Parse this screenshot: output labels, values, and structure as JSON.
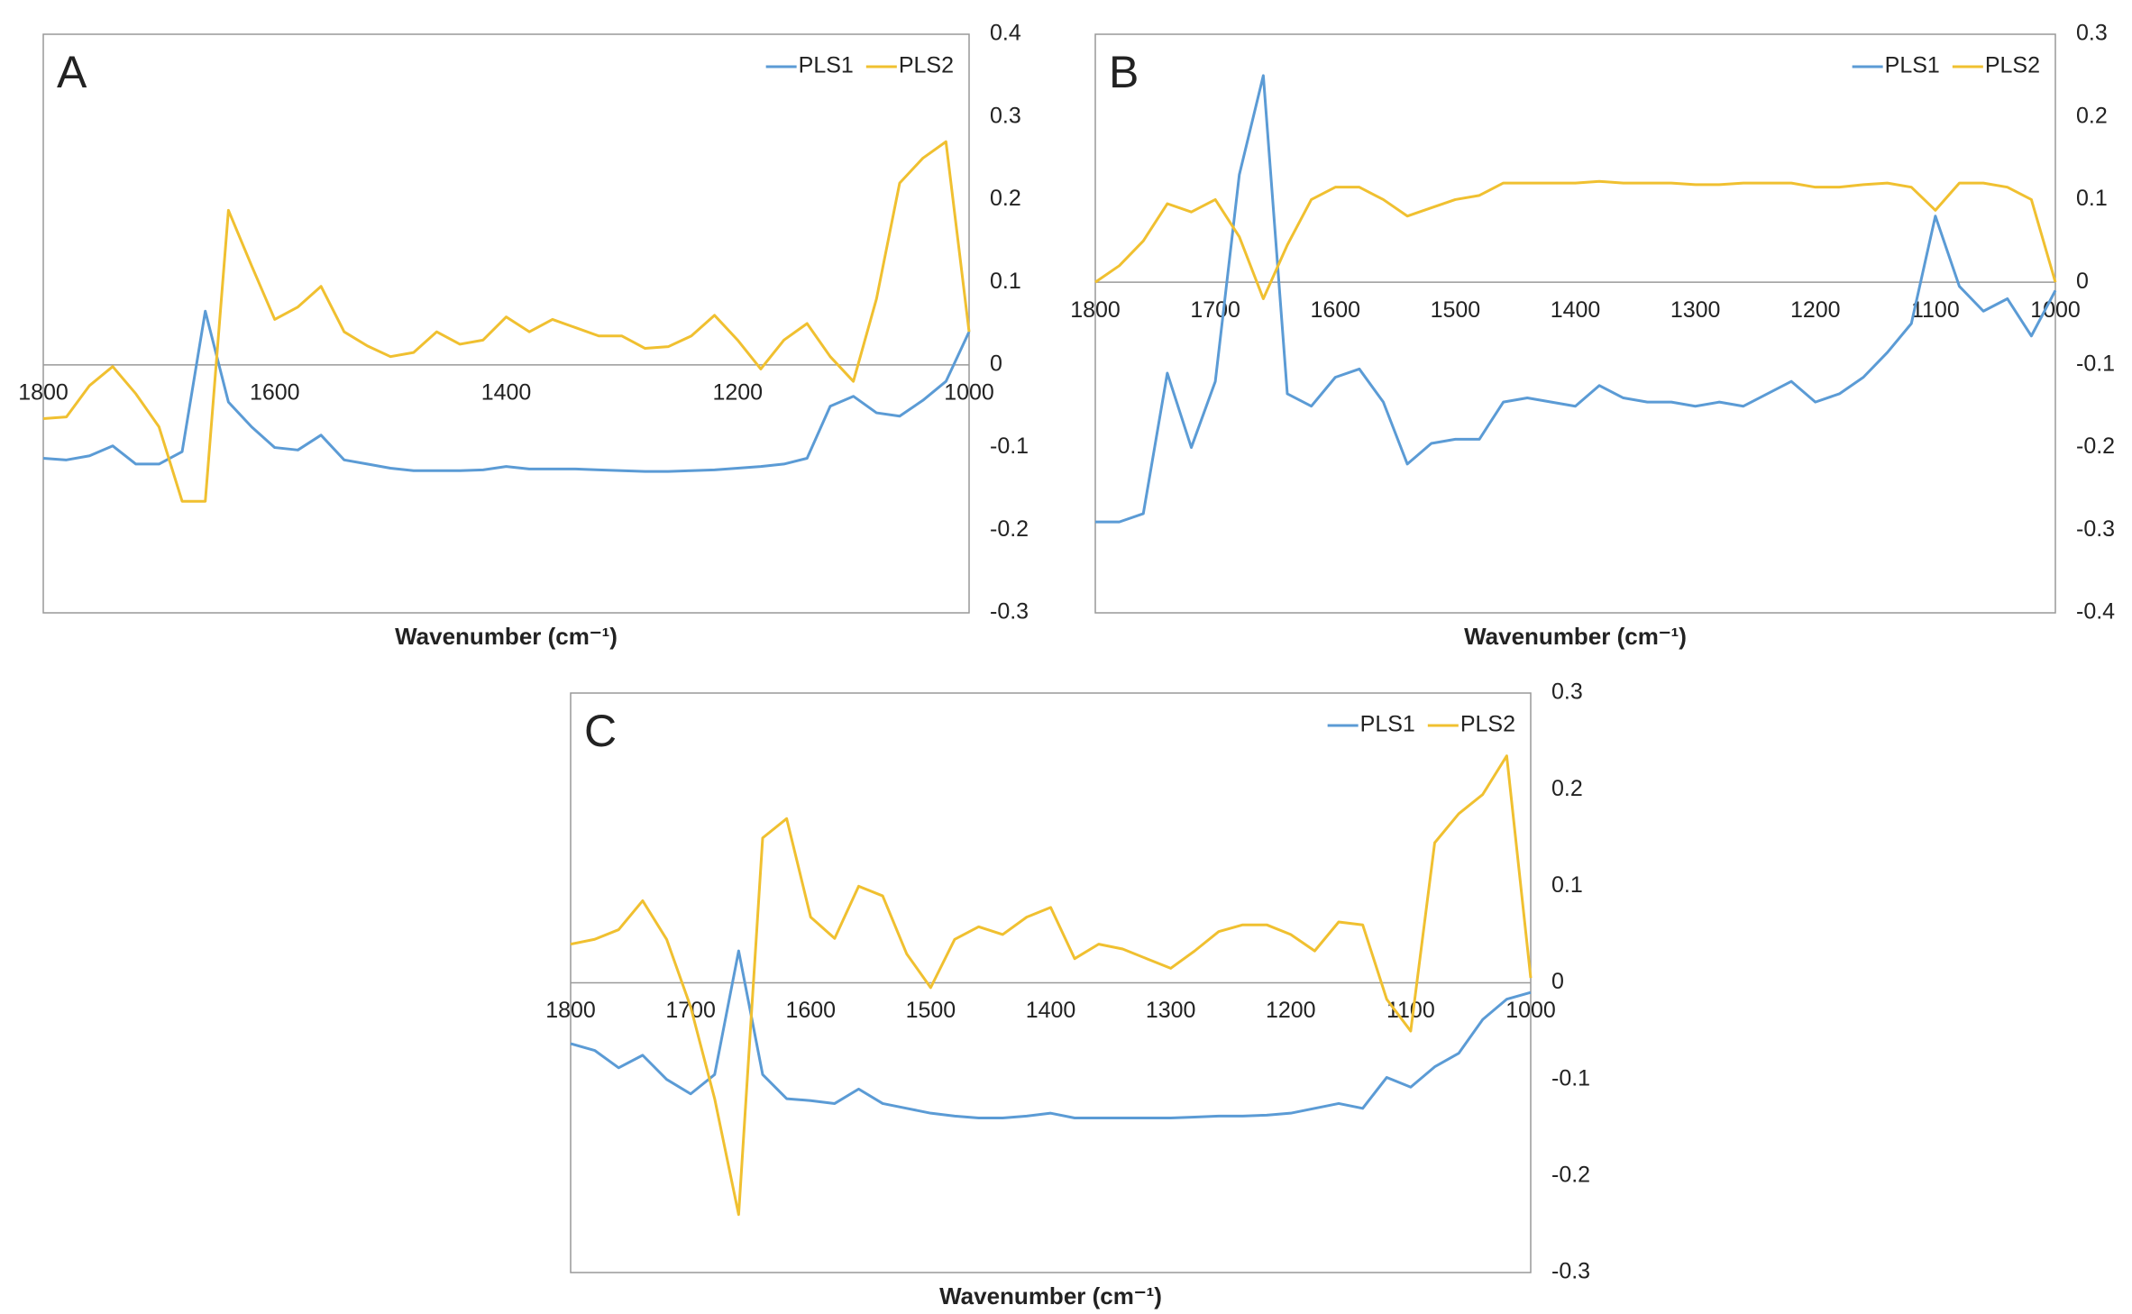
{
  "chart_data": [
    {
      "type": "line",
      "title": "A",
      "x_label": "Wavenumber (cm⁻¹)",
      "y_axis": "right",
      "xlim": [
        1800,
        1000
      ],
      "xticks": [
        1800,
        1600,
        1400,
        1200,
        1000
      ],
      "ylim": [
        -0.3,
        0.4
      ],
      "yticks": [
        -0.3,
        -0.2,
        -0.1,
        0,
        0.1,
        0.2,
        0.3,
        0.4
      ],
      "x": [
        1800,
        1780,
        1760,
        1740,
        1720,
        1700,
        1680,
        1660,
        1640,
        1620,
        1600,
        1580,
        1560,
        1540,
        1520,
        1500,
        1480,
        1460,
        1440,
        1420,
        1400,
        1380,
        1360,
        1340,
        1320,
        1300,
        1280,
        1260,
        1240,
        1220,
        1200,
        1180,
        1160,
        1140,
        1120,
        1100,
        1080,
        1060,
        1040,
        1020,
        1000
      ],
      "series": [
        {
          "name": "PLS1",
          "color": "#5b9bd5",
          "values": [
            -0.113,
            -0.115,
            -0.11,
            -0.098,
            -0.12,
            -0.12,
            -0.105,
            0.065,
            -0.045,
            -0.075,
            -0.1,
            -0.103,
            -0.085,
            -0.115,
            -0.12,
            -0.125,
            -0.128,
            -0.128,
            -0.128,
            -0.127,
            -0.123,
            -0.126,
            -0.126,
            -0.126,
            -0.127,
            -0.128,
            -0.129,
            -0.129,
            -0.128,
            -0.127,
            -0.125,
            -0.123,
            -0.12,
            -0.113,
            -0.05,
            -0.038,
            -0.058,
            -0.062,
            -0.043,
            -0.02,
            0.04
          ]
        },
        {
          "name": "PLS2",
          "color": "#f0c030",
          "values": [
            -0.065,
            -0.063,
            -0.025,
            -0.002,
            -0.035,
            -0.075,
            -0.165,
            -0.165,
            0.187,
            0.12,
            0.055,
            0.07,
            0.095,
            0.04,
            0.023,
            0.01,
            0.015,
            0.04,
            0.025,
            0.03,
            0.058,
            0.04,
            0.055,
            0.045,
            0.035,
            0.035,
            0.02,
            0.022,
            0.035,
            0.06,
            0.03,
            -0.005,
            0.03,
            0.05,
            0.01,
            -0.02,
            0.08,
            0.22,
            0.25,
            0.27,
            0.04
          ]
        }
      ]
    },
    {
      "type": "line",
      "title": "B",
      "x_label": "Wavenumber (cm⁻¹)",
      "y_axis": "right",
      "xlim": [
        1800,
        1000
      ],
      "xticks": [
        1800,
        1700,
        1600,
        1500,
        1400,
        1300,
        1200,
        1100,
        1000
      ],
      "ylim": [
        -0.4,
        0.3
      ],
      "yticks": [
        -0.4,
        -0.3,
        -0.2,
        -0.1,
        0,
        0.1,
        0.2,
        0.3
      ],
      "x": [
        1800,
        1780,
        1760,
        1740,
        1720,
        1700,
        1680,
        1660,
        1640,
        1620,
        1600,
        1580,
        1560,
        1540,
        1520,
        1500,
        1480,
        1460,
        1440,
        1420,
        1400,
        1380,
        1360,
        1340,
        1320,
        1300,
        1280,
        1260,
        1240,
        1220,
        1200,
        1180,
        1160,
        1140,
        1120,
        1100,
        1080,
        1060,
        1040,
        1020,
        1000
      ],
      "series": [
        {
          "name": "PLS1",
          "color": "#5b9bd5",
          "values": [
            -0.29,
            -0.29,
            -0.28,
            -0.11,
            -0.2,
            -0.12,
            0.13,
            0.25,
            -0.135,
            -0.15,
            -0.115,
            -0.105,
            -0.145,
            -0.22,
            -0.195,
            -0.19,
            -0.19,
            -0.145,
            -0.14,
            -0.145,
            -0.15,
            -0.125,
            -0.14,
            -0.145,
            -0.145,
            -0.15,
            -0.145,
            -0.15,
            -0.135,
            -0.12,
            -0.145,
            -0.135,
            -0.115,
            -0.085,
            -0.05,
            0.08,
            -0.005,
            -0.035,
            -0.02,
            -0.065,
            -0.01
          ]
        },
        {
          "name": "PLS2",
          "color": "#f0c030",
          "values": [
            0,
            0.02,
            0.05,
            0.095,
            0.085,
            0.1,
            0.055,
            -0.02,
            0.045,
            0.1,
            0.115,
            0.115,
            0.1,
            0.08,
            0.09,
            0.1,
            0.105,
            0.12,
            0.12,
            0.12,
            0.12,
            0.122,
            0.12,
            0.12,
            0.12,
            0.118,
            0.118,
            0.12,
            0.12,
            0.12,
            0.115,
            0.115,
            0.118,
            0.12,
            0.115,
            0.087,
            0.12,
            0.12,
            0.115,
            0.1,
            0
          ]
        }
      ]
    },
    {
      "type": "line",
      "title": "C",
      "x_label": "Wavenumber (cm⁻¹)",
      "y_axis": "right",
      "xlim": [
        1800,
        1000
      ],
      "xticks": [
        1800,
        1700,
        1600,
        1500,
        1400,
        1300,
        1200,
        1100,
        1000
      ],
      "ylim": [
        -0.3,
        0.3
      ],
      "yticks": [
        -0.3,
        -0.2,
        -0.1,
        0,
        0.1,
        0.2,
        0.3
      ],
      "x": [
        1800,
        1780,
        1760,
        1740,
        1720,
        1700,
        1680,
        1660,
        1640,
        1620,
        1600,
        1580,
        1560,
        1540,
        1520,
        1500,
        1480,
        1460,
        1440,
        1420,
        1400,
        1380,
        1360,
        1340,
        1320,
        1300,
        1280,
        1260,
        1240,
        1220,
        1200,
        1180,
        1160,
        1140,
        1120,
        1100,
        1080,
        1060,
        1040,
        1020,
        1000
      ],
      "series": [
        {
          "name": "PLS1",
          "color": "#5b9bd5",
          "values": [
            -0.063,
            -0.07,
            -0.088,
            -0.075,
            -0.1,
            -0.115,
            -0.095,
            0.033,
            -0.095,
            -0.12,
            -0.122,
            -0.125,
            -0.11,
            -0.125,
            -0.13,
            -0.135,
            -0.138,
            -0.14,
            -0.14,
            -0.138,
            -0.135,
            -0.14,
            -0.14,
            -0.14,
            -0.14,
            -0.14,
            -0.139,
            -0.138,
            -0.138,
            -0.137,
            -0.135,
            -0.13,
            -0.125,
            -0.13,
            -0.098,
            -0.108,
            -0.087,
            -0.073,
            -0.038,
            -0.017,
            -0.01
          ]
        },
        {
          "name": "PLS2",
          "color": "#f0c030",
          "values": [
            0.04,
            0.045,
            0.055,
            0.085,
            0.045,
            -0.025,
            -0.12,
            -0.24,
            0.15,
            0.17,
            0.068,
            0.046,
            0.1,
            0.09,
            0.03,
            -0.005,
            0.045,
            0.058,
            0.05,
            0.068,
            0.078,
            0.025,
            0.04,
            0.035,
            0.025,
            0.015,
            0.033,
            0.053,
            0.06,
            0.06,
            0.05,
            0.033,
            0.063,
            0.06,
            -0.017,
            -0.05,
            0.145,
            0.175,
            0.195,
            0.235,
            0.005
          ]
        }
      ]
    }
  ]
}
